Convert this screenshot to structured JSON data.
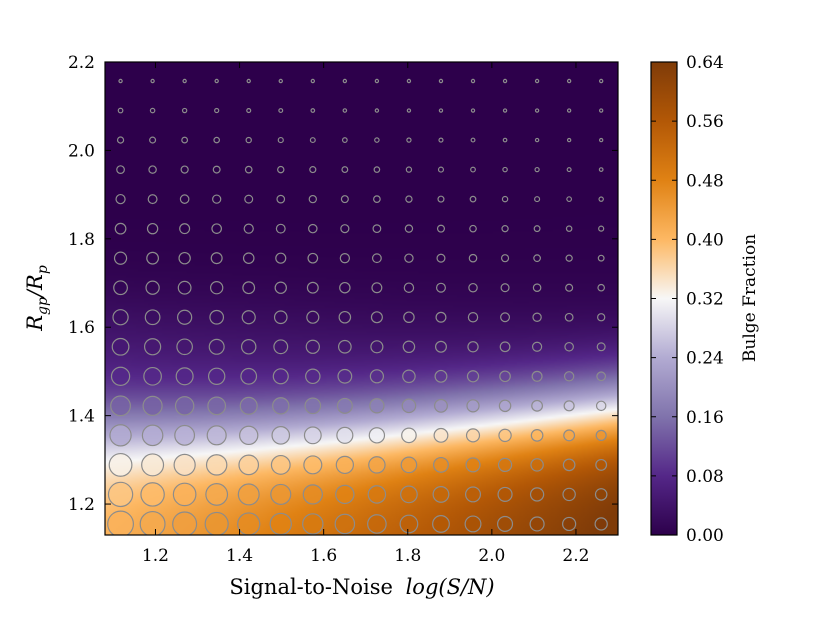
{
  "chart_data": {
    "type": "heatmap",
    "xlabel_text": "Signal-to-Noise",
    "xlabel_math": "log(S/N)",
    "ylabel_main": "R",
    "ylabel_sub1": "gp",
    "ylabel_mid": "/R",
    "ylabel_sub2": "p",
    "xlim": [
      1.08,
      2.3
    ],
    "ylim": [
      1.13,
      2.2
    ],
    "x_ticks": [
      "1.2",
      "1.4",
      "1.6",
      "1.8",
      "2.0",
      "2.2"
    ],
    "y_ticks": [
      "1.2",
      "1.4",
      "1.6",
      "1.8",
      "2.0",
      "2.2"
    ],
    "colorbar": {
      "label": "Bulge Fraction",
      "range": [
        0.0,
        0.64
      ],
      "ticks": [
        "0.00",
        "0.08",
        "0.16",
        "0.24",
        "0.32",
        "0.40",
        "0.48",
        "0.56",
        "0.64"
      ],
      "colormap": "PuOr_r"
    },
    "markers": {
      "x_start": 1.117,
      "x_step": 0.0762,
      "x_count": 16,
      "y_start": 1.155,
      "y_step": 0.0668,
      "y_count": 16,
      "size_description": "circle size decreases with log(S/N) and with R_gp/R_p",
      "edge_color": "#8c8c8c"
    }
  }
}
